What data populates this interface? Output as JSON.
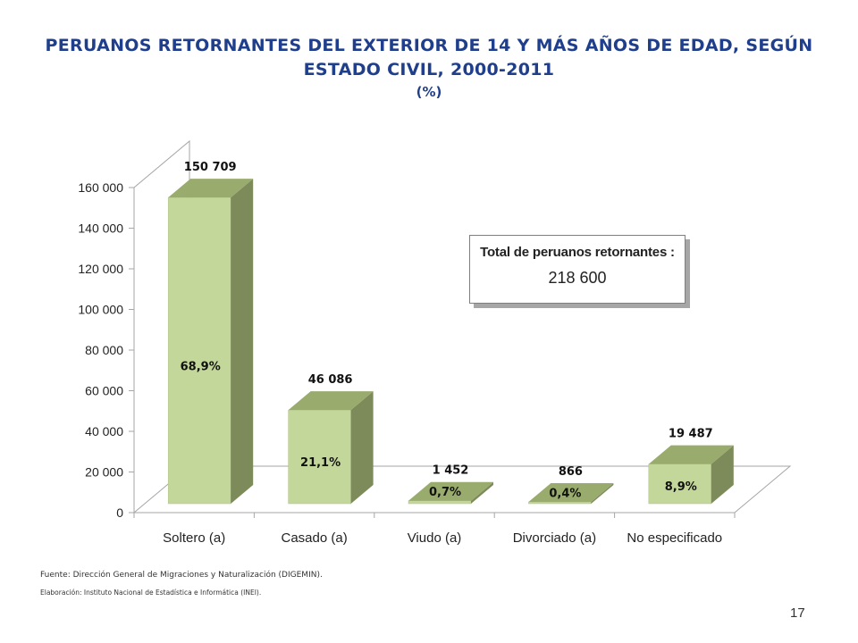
{
  "title": "PERUANOS RETORNANTES DEL EXTERIOR DE 14 Y MÁS AÑOS DE EDAD, SEGÚN ESTADO CIVIL, 2000-2011",
  "subtitle": "(%)",
  "total_box": {
    "label": "Total de peruanos retornantes :",
    "value": "218 600"
  },
  "footnotes": {
    "source": "Fuente: Dirección General de Migraciones y Naturalización (DIGEMIN).",
    "elaboration": "Elaboración: Instituto Nacional de Estadística e Informática (INEI)."
  },
  "page_number": "17",
  "chart_data": {
    "type": "bar",
    "title": "PERUANOS RETORNANTES DEL EXTERIOR DE 14 Y MÁS AÑOS DE EDAD, SEGÚN ESTADO CIVIL, 2000-2011",
    "categories": [
      "Soltero (a)",
      "Casado (a)",
      "Viudo (a)",
      "Divorciado (a)",
      "No especificado"
    ],
    "values": [
      150709,
      46086,
      1452,
      866,
      19487
    ],
    "value_labels": [
      "150 709",
      "46 086",
      "1 452",
      "866",
      "19 487"
    ],
    "percent_labels": [
      "68,9%",
      "21,1%",
      "0,7%",
      "0,4%",
      "8,9%"
    ],
    "ylim": [
      0,
      160000
    ],
    "yticks": [
      0,
      20000,
      40000,
      60000,
      80000,
      100000,
      120000,
      140000,
      160000
    ],
    "ytick_labels": [
      "0",
      "20 000",
      "40 000",
      "60 000",
      "80 000",
      "100 000",
      "120 000",
      "140 000",
      "160 000"
    ],
    "xlabel": "",
    "ylabel": "",
    "grid": false,
    "style": "3d-bar",
    "colors": {
      "front": "#c4d79b",
      "side": "#7d8a5a",
      "top": "#9aab6e",
      "axis": "#a6a6a6"
    }
  }
}
